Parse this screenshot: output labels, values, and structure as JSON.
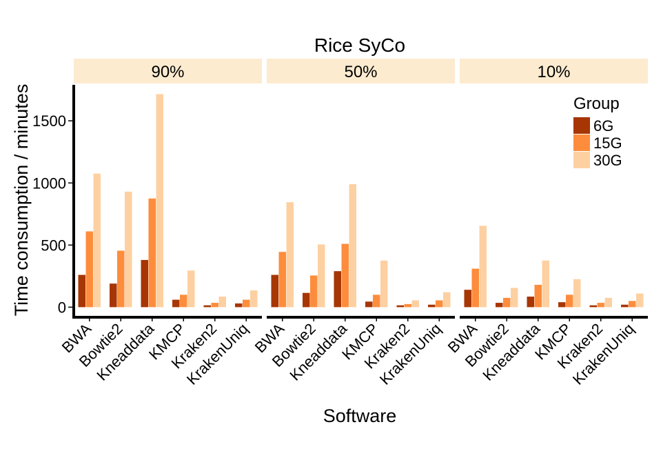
{
  "chart_data": {
    "type": "bar",
    "title": "Rice SyCo",
    "xlabel": "Software",
    "ylabel": "Time consumption / minutes",
    "ylim": [
      -70,
      1790
    ],
    "yticks": [
      0,
      500,
      1000,
      1500
    ],
    "categories": [
      "BWA",
      "Bowtie2",
      "Kneaddata",
      "KMCP",
      "Kraken2",
      "KrakenUniq"
    ],
    "legend": {
      "title": "Group",
      "position": "top-right"
    },
    "series_colors": {
      "6G": "#A63603",
      "15G": "#FD8D3C",
      "30G": "#FDD0A2"
    },
    "strip_color": "#FDEBD0",
    "facets": [
      {
        "label": "90%",
        "series": [
          {
            "name": "6G",
            "values": [
              260,
              190,
              380,
              60,
              15,
              30
            ]
          },
          {
            "name": "15G",
            "values": [
              610,
              455,
              875,
              100,
              35,
              60
            ]
          },
          {
            "name": "30G",
            "values": [
              1075,
              930,
              1715,
              295,
              85,
              135
            ]
          }
        ]
      },
      {
        "label": "50%",
        "series": [
          {
            "name": "6G",
            "values": [
              260,
              115,
              290,
              45,
              15,
              20
            ]
          },
          {
            "name": "15G",
            "values": [
              445,
              255,
              510,
              100,
              25,
              55
            ]
          },
          {
            "name": "30G",
            "values": [
              845,
              505,
              990,
              375,
              55,
              120
            ]
          }
        ]
      },
      {
        "label": "10%",
        "series": [
          {
            "name": "6G",
            "values": [
              140,
              35,
              85,
              40,
              15,
              20
            ]
          },
          {
            "name": "15G",
            "values": [
              310,
              75,
              180,
              100,
              35,
              50
            ]
          },
          {
            "name": "30G",
            "values": [
              655,
              155,
              375,
              225,
              75,
              110
            ]
          }
        ]
      }
    ]
  }
}
